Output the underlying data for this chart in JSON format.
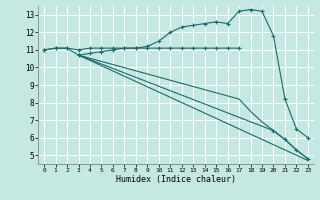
{
  "xlabel": "Humidex (Indice chaleur)",
  "xlim": [
    -0.5,
    23.5
  ],
  "ylim": [
    4.5,
    13.5
  ],
  "yticks": [
    5,
    6,
    7,
    8,
    9,
    10,
    11,
    12,
    13
  ],
  "xticks": [
    0,
    1,
    2,
    3,
    4,
    5,
    6,
    7,
    8,
    9,
    10,
    11,
    12,
    13,
    14,
    15,
    16,
    17,
    18,
    19,
    20,
    21,
    22,
    23
  ],
  "bg_color": "#c5e8e3",
  "line_color": "#1a6b6b",
  "grid_color": "#ffffff",
  "lines": [
    {
      "x": [
        0,
        1,
        2,
        3,
        4,
        5,
        6,
        7,
        8,
        9,
        10,
        11,
        12,
        13,
        14,
        15,
        16,
        17
      ],
      "y": [
        11.0,
        11.1,
        11.1,
        11.0,
        11.1,
        11.1,
        11.1,
        11.1,
        11.1,
        11.1,
        11.1,
        11.1,
        11.1,
        11.1,
        11.1,
        11.1,
        11.1,
        11.1
      ],
      "marker": "+"
    },
    {
      "x": [
        0,
        1,
        2,
        3,
        4,
        5,
        6,
        7,
        8,
        9,
        10,
        11,
        12,
        13,
        14,
        15,
        16,
        17,
        18,
        19,
        20,
        21,
        22,
        23
      ],
      "y": [
        11.0,
        11.1,
        11.1,
        10.7,
        10.8,
        10.9,
        11.0,
        11.1,
        11.1,
        11.2,
        11.5,
        12.0,
        12.3,
        12.4,
        12.5,
        12.6,
        12.5,
        13.2,
        13.3,
        13.2,
        11.8,
        8.2,
        6.5,
        6.0
      ],
      "marker": "+"
    },
    {
      "x": [
        3,
        23
      ],
      "y": [
        10.7,
        4.7
      ],
      "marker": null
    },
    {
      "x": [
        3,
        20,
        21,
        22,
        23
      ],
      "y": [
        10.7,
        6.4,
        5.9,
        5.3,
        4.8
      ],
      "marker": "+"
    },
    {
      "x": [
        3,
        17,
        18,
        19,
        20,
        21,
        22,
        23
      ],
      "y": [
        10.7,
        8.2,
        7.5,
        6.9,
        6.4,
        5.9,
        5.3,
        4.8
      ],
      "marker": null
    }
  ]
}
